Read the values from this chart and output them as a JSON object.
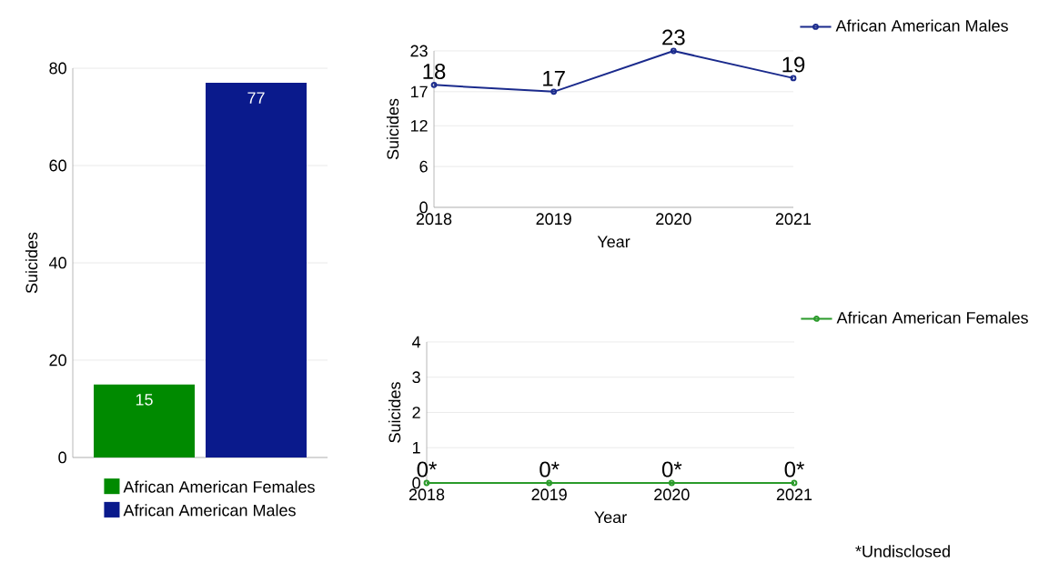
{
  "chart_data": [
    {
      "type": "bar",
      "categories": [
        null
      ],
      "series": [
        {
          "name": "African American Females",
          "color": "#008a00",
          "values": [
            15
          ]
        },
        {
          "name": "African American Males",
          "color": "#0a1a8c",
          "values": [
            77
          ]
        }
      ],
      "ylabel": "Suicides",
      "ylim": [
        0,
        80
      ],
      "yticks": [
        0,
        20,
        40,
        60,
        80
      ],
      "grid": "y",
      "legend": "bottom",
      "data_labels": true
    },
    {
      "type": "line",
      "x": [
        2018,
        2019,
        2020,
        2021
      ],
      "series": [
        {
          "name": "African American Males",
          "color": "#1a2a8c",
          "values": [
            18,
            17,
            23,
            19
          ]
        }
      ],
      "xlabel": "Year",
      "ylabel": "Suicides",
      "xlim": [
        2018,
        2021
      ],
      "xticks": [
        2018,
        2019,
        2020,
        2021
      ],
      "ylim": [
        0,
        23
      ],
      "yticks": [
        0,
        6,
        12,
        17,
        23
      ],
      "grid": "y",
      "legend": "top right",
      "marker": "circle",
      "data_labels": true
    },
    {
      "type": "line",
      "x": [
        2018,
        2019,
        2020,
        2021
      ],
      "series": [
        {
          "name": "African American Females",
          "color": "#2a9a2a",
          "values": [
            0,
            0,
            0,
            0
          ],
          "value_labels": [
            "0*",
            "0*",
            "0*",
            "0*"
          ]
        }
      ],
      "xlabel": "Year",
      "ylabel": "Suicides",
      "xlim": [
        2018,
        2021
      ],
      "xticks": [
        2018,
        2019,
        2020,
        2021
      ],
      "ylim": [
        0,
        4
      ],
      "yticks": [
        0,
        1,
        2,
        3,
        4
      ],
      "grid": "y",
      "legend": "top right",
      "marker": "circle",
      "annotations": [
        "*Undisclosed"
      ]
    }
  ]
}
